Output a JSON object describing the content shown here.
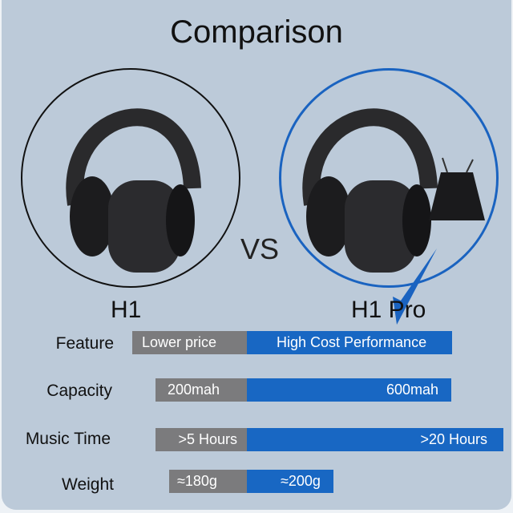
{
  "title": "Comparison",
  "vs": "VS",
  "products": [
    {
      "name": "H1",
      "badge": "H1"
    },
    {
      "name": "H1 Pro",
      "badge": "H1 Pro"
    }
  ],
  "colors": {
    "background": "#bccad9",
    "gray_bar": "#7b7b7d",
    "blue_bar": "#1867c3"
  },
  "rows": [
    {
      "label": "Feature",
      "h1": "Lower price",
      "pro": "High Cost Performance"
    },
    {
      "label": "Capacity",
      "h1": "200mah",
      "pro": "600mah"
    },
    {
      "label": "Music Time",
      "h1": ">5 Hours",
      "pro": ">20 Hours"
    },
    {
      "label": "Weight",
      "h1": "≈180g",
      "pro": "≈200g"
    }
  ]
}
